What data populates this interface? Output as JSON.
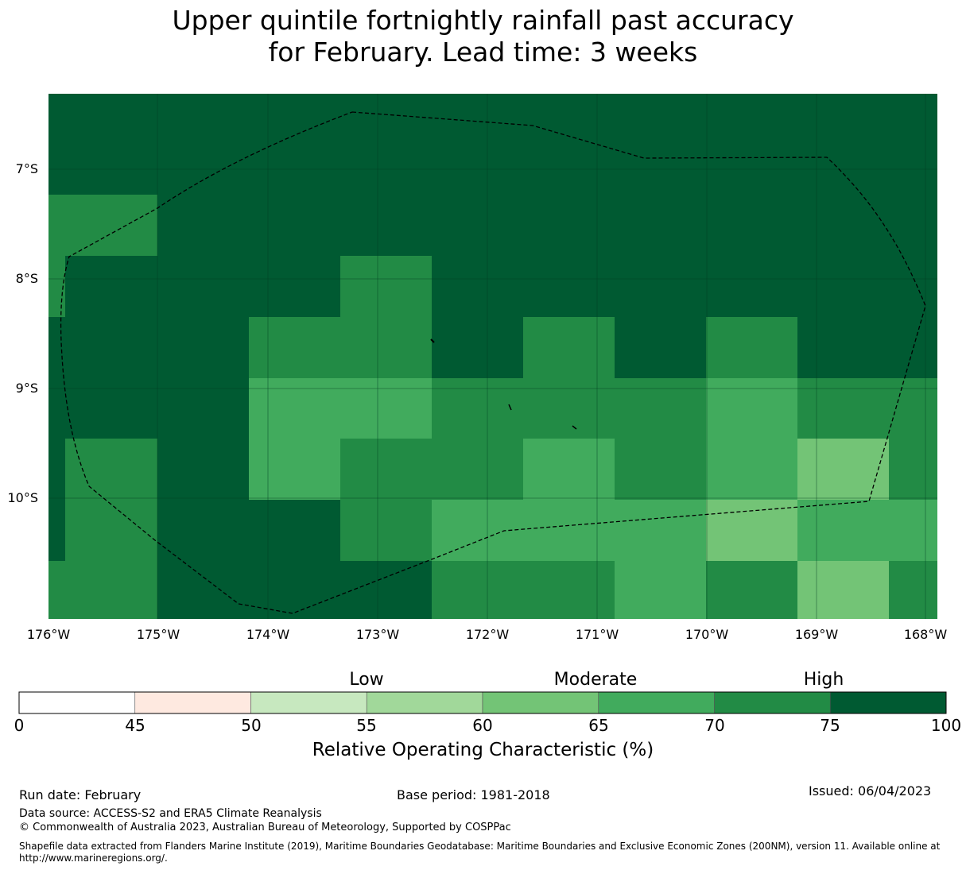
{
  "title": {
    "line1": "Upper quintile fortnightly rainfall past accuracy",
    "line2": "for February. Lead time: 3 weeks"
  },
  "map": {
    "lat_labels": [
      "7°S",
      "8°S",
      "9°S",
      "10°S"
    ],
    "lon_labels": [
      "176°W",
      "175°W",
      "174°W",
      "173°W",
      "172°W",
      "171°W",
      "170°W",
      "169°W",
      "168°W"
    ],
    "lat_range": [
      -6.3,
      -11.1
    ],
    "lon_range": [
      -176,
      -167.9
    ]
  },
  "colorbar": {
    "categories": [
      "Low",
      "Moderate",
      "High"
    ],
    "ticks": [
      "0",
      "45",
      "50",
      "55",
      "60",
      "65",
      "70",
      "75",
      "100"
    ],
    "colors": [
      "#ffffff",
      "#fee9e0",
      "#c7e8bf",
      "#a1d89a",
      "#73c476",
      "#41ab5d",
      "#228b45",
      "#005a32"
    ],
    "label": "Relative Operating Characteristic (%)"
  },
  "footer": {
    "run_date": "Run date: February",
    "base_period": "Base period: 1981-2018",
    "issued": "Issued: 06/04/2023",
    "data_source": "Data source: ACCESS-S2 and ERA5 Climate Reanalysis",
    "copyright": "© Commonwealth of Australia 2023, Australian Bureau of Meteorology, Supported by COSPPac",
    "shapefile_note": "Shapefile data extracted from Flanders Marine Institute (2019), Maritime Boundaries Geodatabase: Maritime Boundaries and Exclusive Economic Zones (200NM), version 11. Available online at http://www.marineregions.org/."
  }
}
